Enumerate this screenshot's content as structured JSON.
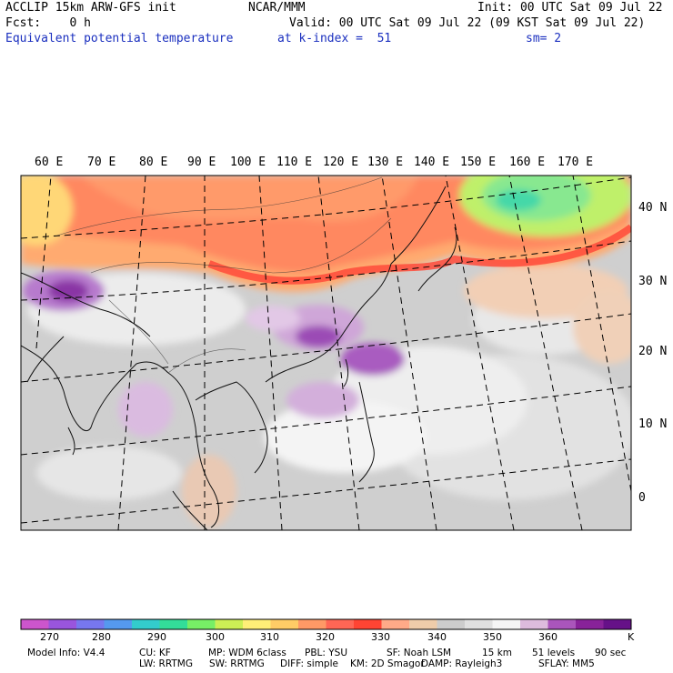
{
  "header": {
    "model": "ACCLIP 15km ARW-GFS init",
    "org": "NCAR/MMM",
    "init": "Init: 00 UTC Sat 09 Jul 22",
    "fcst": "Fcst:    0 h",
    "valid": "Valid: 00 UTC Sat 09 Jul 22 (09 KST Sat 09 Jul 22)",
    "field": "Equivalent potential temperature",
    "level": "at k-index =  51",
    "smooth": "sm= 2"
  },
  "lon_labels": [
    "60 E",
    "70 E",
    "80 E",
    "90 E",
    "100 E",
    "110 E",
    "120 E",
    "130 E",
    "140 E",
    "150 E",
    "160 E",
    "170 E"
  ],
  "lat_labels": [
    "40 N",
    "30 N",
    "20 N",
    "10 N",
    "0"
  ],
  "colorbar": {
    "unit": "K",
    "tick_labels": [
      "270",
      "280",
      "290",
      "300",
      "310",
      "320",
      "330",
      "340",
      "350",
      "360"
    ],
    "colors": [
      "#cc55cc",
      "#9955dd",
      "#7777ee",
      "#5599ee",
      "#33cccc",
      "#33dd99",
      "#77ee66",
      "#ccee55",
      "#ffee77",
      "#ffcc66",
      "#ff9966",
      "#ff6655",
      "#ff4433",
      "#ffaa88",
      "#eeccaa",
      "#cccccc",
      "#e0e0e0",
      "#f5f5f5",
      "#ddbbdd",
      "#aa55bb",
      "#882299",
      "#661188"
    ]
  },
  "footer": {
    "line1": [
      "Model Info: V4.4",
      "CU: KF",
      "MP: WDM 6class",
      "PBL: YSU",
      "SF: Noah LSM",
      "15 km",
      "51 levels",
      "90 sec"
    ],
    "line2": [
      "LW: RRTMG",
      "SW: RRTMG",
      "DIFF: simple",
      "KM: 2D Smagor",
      "DAMP: Rayleigh3",
      "SFLAY: MM5"
    ]
  }
}
